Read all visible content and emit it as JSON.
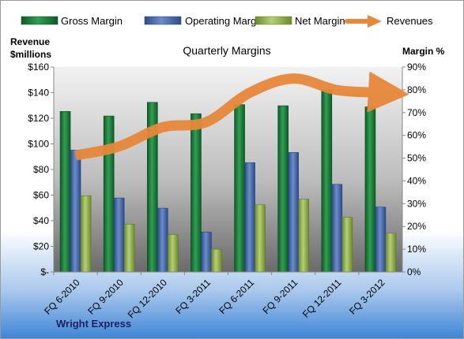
{
  "chart_data": {
    "type": "bar",
    "title": "Quarterly Margins",
    "footer": "Wright Express",
    "left_axis_title_line1": "Revenue",
    "left_axis_title_line2": "$millions",
    "right_axis_title": "Margin %",
    "categories": [
      "FQ 6-2010",
      "FQ 9-2010",
      "FQ 12-2010",
      "FQ 3-2011",
      "FQ 6-2011",
      "FQ 9-2011",
      "FQ 12-2011",
      "FQ 3-2012"
    ],
    "left_ticks": [
      "$-",
      "$20",
      "$40",
      "$60",
      "$80",
      "$100",
      "$120",
      "$140",
      "$160"
    ],
    "right_ticks": [
      "0%",
      "10%",
      "20%",
      "30%",
      "40%",
      "50%",
      "60%",
      "70%",
      "80%",
      "90%"
    ],
    "ylim_left": [
      0,
      160
    ],
    "ylim_right": [
      0,
      90
    ],
    "grid": false,
    "legend_position": "top",
    "series": [
      {
        "name": "Gross Margin",
        "type": "bar",
        "axis": "right",
        "color": "#1e7a3c",
        "values": [
          70.5,
          68.5,
          74.5,
          69.5,
          73.5,
          73,
          80,
          72.5
        ]
      },
      {
        "name": "Operating Margin",
        "type": "bar",
        "axis": "right",
        "color": "#3e62a8",
        "values": [
          53.5,
          32.5,
          28,
          17.5,
          48,
          52.5,
          38.5,
          28.5
        ]
      },
      {
        "name": "Net Margin",
        "type": "bar",
        "axis": "right",
        "color": "#8fae4a",
        "values": [
          33.5,
          21,
          16.5,
          10,
          29.5,
          32,
          24,
          17
        ]
      },
      {
        "name": "Revenues",
        "type": "line",
        "axis": "left",
        "color": "#e7883a",
        "values": [
          91,
          98,
          113,
          117,
          140,
          151,
          142,
          140
        ]
      }
    ]
  }
}
